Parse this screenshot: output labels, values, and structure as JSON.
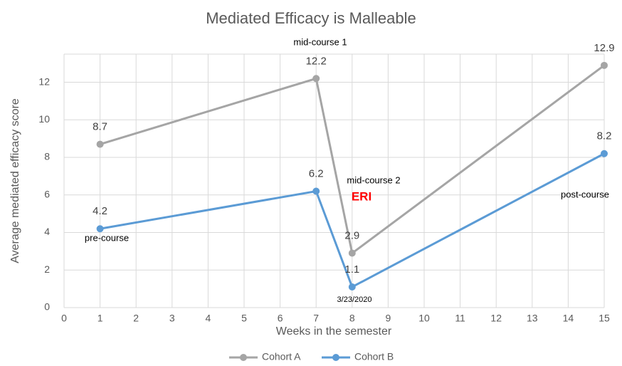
{
  "chart_data": {
    "type": "line",
    "title": "Mediated Efficacy is Malleable",
    "x_label": "Weeks in the semester",
    "y_label": "Average mediated efficacy score",
    "x": [
      1,
      7,
      8,
      15
    ],
    "series": [
      {
        "name": "Cohort A",
        "color": "#a5a5a5",
        "values": [
          8.7,
          12.2,
          2.9,
          12.9
        ]
      },
      {
        "name": "Cohort B",
        "color": "#5b9bd5",
        "values": [
          4.2,
          6.2,
          1.1,
          8.2
        ]
      }
    ],
    "xlim": [
      0,
      15
    ],
    "xticks": [
      0,
      1,
      2,
      3,
      4,
      5,
      6,
      7,
      8,
      9,
      10,
      11,
      12,
      13,
      14,
      15
    ],
    "ylim": [
      0,
      13.5
    ],
    "yticks": [
      0,
      2,
      4,
      6,
      8,
      10,
      12
    ],
    "grid": true,
    "legend": "bottom",
    "annotations": [
      "mid-course 1",
      "mid-course 2",
      "ERI",
      "pre-course",
      "3/23/2020",
      "post-course"
    ]
  }
}
